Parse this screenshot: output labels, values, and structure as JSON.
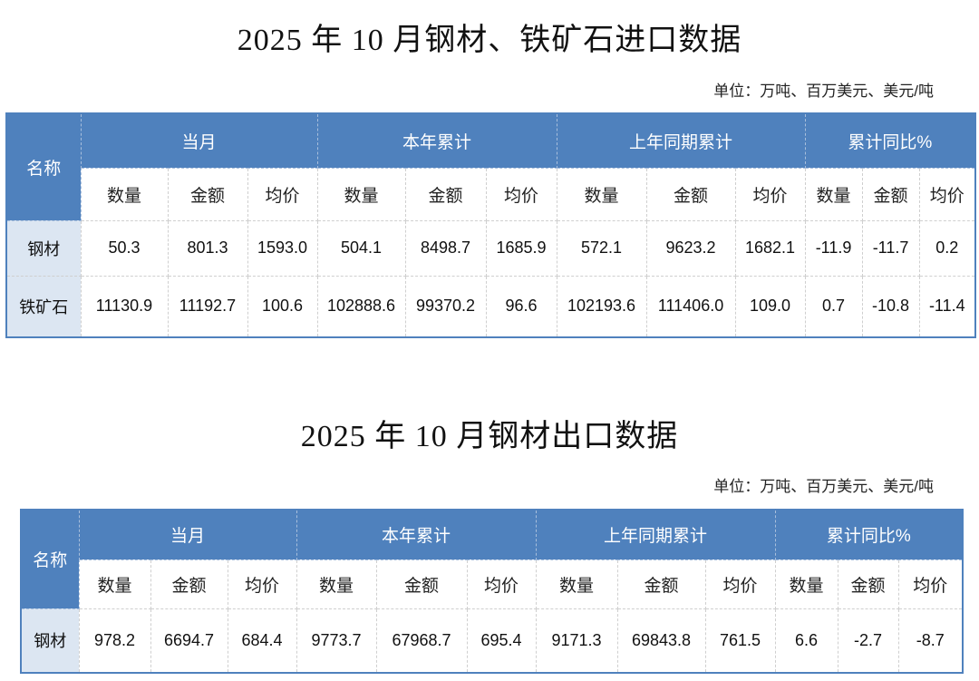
{
  "import": {
    "title": "2025 年 10 月钢材、铁矿石进口数据",
    "unit": "单位：万吨、百万美元、美元/吨",
    "name_header": "名称",
    "groups": [
      "当月",
      "本年累计",
      "上年同期累计",
      "累计同比%"
    ],
    "subheaders": [
      "数量",
      "金额",
      "均价",
      "数量",
      "金额",
      "均价",
      "数量",
      "金额",
      "均价",
      "数量",
      "金额",
      "均价"
    ],
    "rows": [
      {
        "name": "钢材",
        "values": [
          "50.3",
          "801.3",
          "1593.0",
          "504.1",
          "8498.7",
          "1685.9",
          "572.1",
          "9623.2",
          "1682.1",
          "-11.9",
          "-11.7",
          "0.2"
        ]
      },
      {
        "name": "铁矿石",
        "values": [
          "11130.9",
          "11192.7",
          "100.6",
          "102888.6",
          "99370.2",
          "96.6",
          "102193.6",
          "111406.0",
          "109.0",
          "0.7",
          "-10.8",
          "-11.4"
        ]
      }
    ]
  },
  "export": {
    "title": "2025 年 10 月钢材出口数据",
    "unit": "单位：万吨、百万美元、美元/吨",
    "name_header": "名称",
    "groups": [
      "当月",
      "本年累计",
      "上年同期累计",
      "累计同比%"
    ],
    "subheaders": [
      "数量",
      "金额",
      "均价",
      "数量",
      "金额",
      "均价",
      "数量",
      "金额",
      "均价",
      "数量",
      "金额",
      "均价"
    ],
    "rows": [
      {
        "name": "钢材",
        "values": [
          "978.2",
          "6694.7",
          "684.4",
          "9773.7",
          "67968.7",
          "695.4",
          "9171.3",
          "69843.8",
          "761.5",
          "6.6",
          "-2.7",
          "-8.7"
        ]
      }
    ]
  },
  "colors": {
    "header": "#4f81bd",
    "name_cell": "#dce6f2"
  }
}
